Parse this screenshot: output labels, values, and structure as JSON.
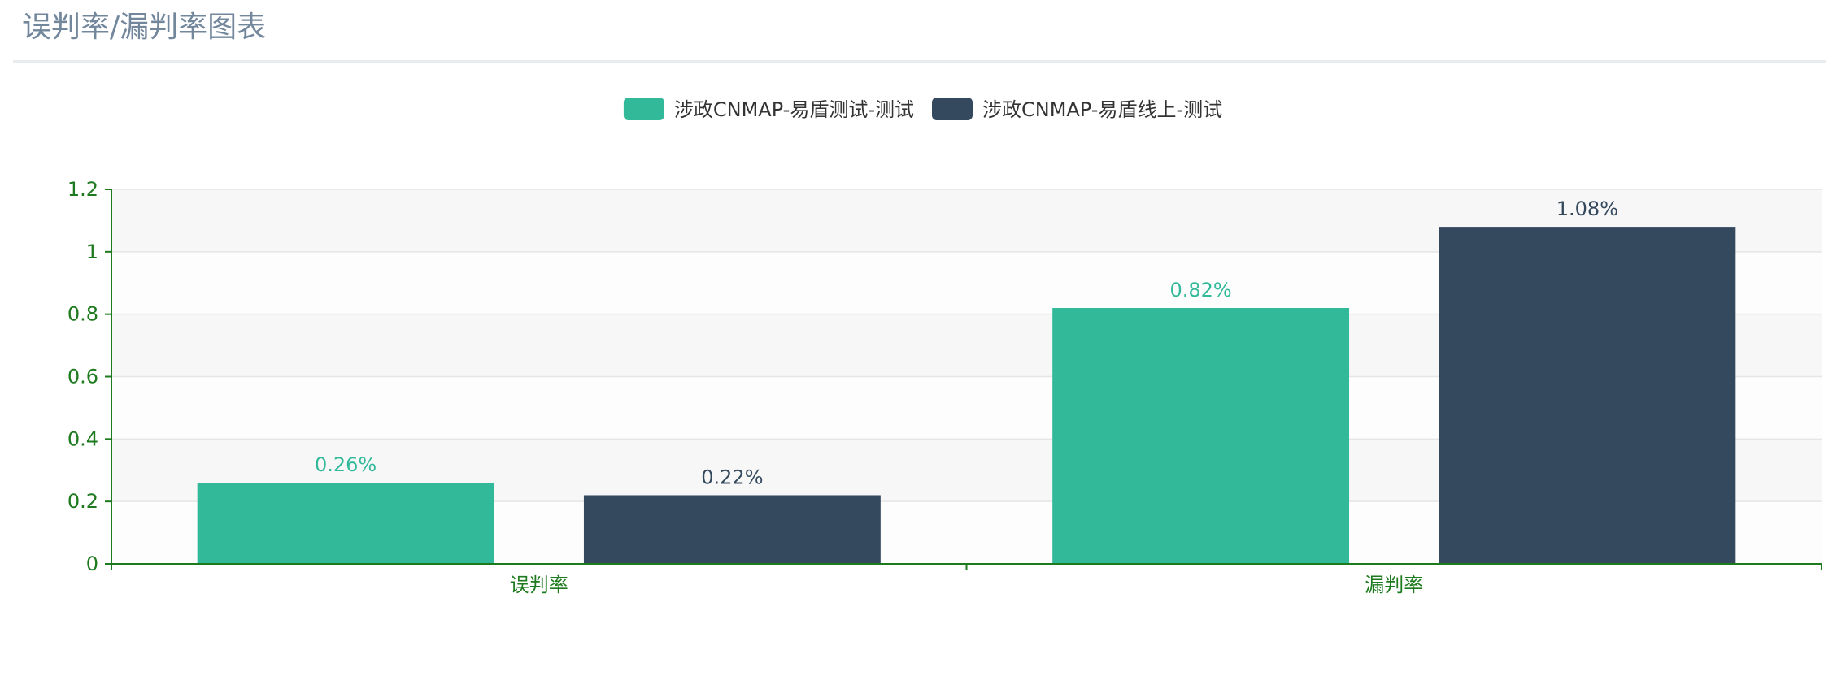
{
  "panel": {
    "title": "误判率/漏判率图表"
  },
  "chart_data": {
    "type": "bar",
    "categories": [
      "误判率",
      "漏判率"
    ],
    "series": [
      {
        "name": "涉政CNMAP-易盾测试-测试",
        "values": [
          0.26,
          0.82
        ],
        "labels": [
          "0.26%",
          "0.82%"
        ],
        "color": "#32b99a"
      },
      {
        "name": "涉政CNMAP-易盾线上-测试",
        "values": [
          0.22,
          1.08
        ],
        "labels": [
          "0.22%",
          "1.08%"
        ],
        "color": "#34495e"
      }
    ],
    "yticks": [
      "0",
      "0.2",
      "0.4",
      "0.6",
      "0.8",
      "1",
      "1.2"
    ],
    "ylim": [
      0,
      1.2
    ],
    "legend_position": "top-center",
    "grid": true,
    "axis_color": "#1e7a1e",
    "grid_band_color": "#f7f7f7"
  }
}
